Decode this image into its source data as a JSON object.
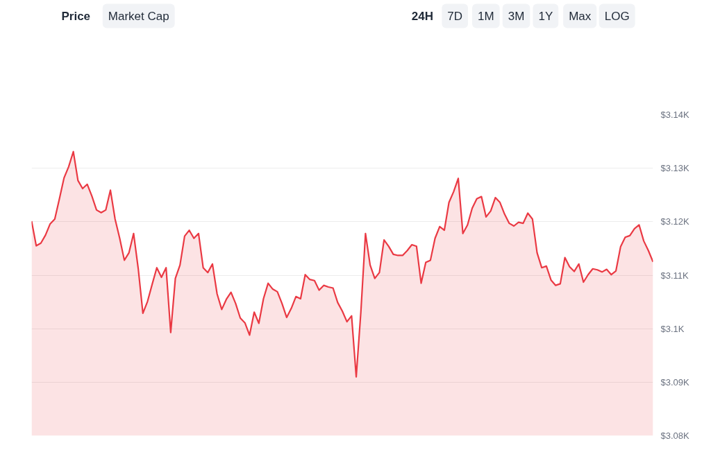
{
  "chart_data": {
    "type": "area",
    "categories": [
      null,
      null,
      null,
      null,
      null,
      null,
      null,
      null,
      null,
      null,
      null,
      null,
      null,
      null,
      null,
      null,
      null,
      null,
      null,
      null,
      null,
      null,
      null,
      null,
      null,
      null,
      null,
      null,
      null,
      null,
      null,
      null,
      null,
      null,
      null,
      null,
      null,
      null,
      null,
      null,
      null,
      null,
      null,
      null,
      null,
      null,
      null,
      null,
      null,
      null,
      null,
      null,
      null,
      null,
      null,
      null,
      null,
      null,
      null,
      null,
      null,
      null,
      null,
      null,
      null,
      null,
      null,
      null,
      null,
      null,
      null,
      null,
      null,
      null,
      null,
      null,
      null,
      null,
      null,
      null,
      null,
      null,
      null,
      null,
      null,
      null,
      null,
      null,
      null,
      null,
      null,
      null,
      null,
      null,
      null,
      null,
      null,
      null,
      null,
      null,
      null,
      null,
      null,
      null,
      null,
      null,
      null,
      null,
      null,
      null,
      null,
      null,
      null,
      null,
      null,
      null,
      null,
      null,
      null,
      null,
      null,
      null,
      null,
      null,
      null,
      null,
      null,
      null,
      null,
      null,
      null,
      null,
      null,
      null,
      null
    ],
    "series": [
      {
        "color": "#ea3943",
        "values": [
          3120.1,
          3115.5,
          3116.0,
          3117.5,
          3119.6,
          3120.5,
          3124.3,
          3128.2,
          3130.3,
          3133.1,
          3127.7,
          3126.2,
          3127.0,
          3124.8,
          3122.2,
          3121.7,
          3122.2,
          3125.9,
          3120.5,
          3116.9,
          3112.8,
          3114.2,
          3117.8,
          3111.2,
          3102.9,
          3105.1,
          3108.3,
          3111.4,
          3109.6,
          3111.4,
          3099.3,
          3109.4,
          3111.9,
          3117.3,
          3118.4,
          3116.9,
          3117.8,
          3111.4,
          3110.5,
          3112.1,
          3106.5,
          3103.6,
          3105.5,
          3106.8,
          3104.7,
          3102.0,
          3101.1,
          3098.8,
          3103.1,
          3101.0,
          3105.6,
          3108.5,
          3107.4,
          3106.9,
          3104.7,
          3102.1,
          3103.8,
          3106.0,
          3105.6,
          3110.1,
          3109.2,
          3109.0,
          3107.2,
          3108.1,
          3107.8,
          3107.6,
          3104.9,
          3103.3,
          3101.3,
          3102.4,
          3091.0,
          3103.1,
          3117.8,
          3111.9,
          3109.4,
          3110.5,
          3116.6,
          3115.4,
          3113.9,
          3113.7,
          3113.7,
          3114.6,
          3115.7,
          3115.4,
          3108.5,
          3112.4,
          3112.8,
          3116.9,
          3119.1,
          3118.4,
          3123.6,
          3125.6,
          3128.1,
          3117.8,
          3119.4,
          3122.5,
          3124.3,
          3124.7,
          3120.9,
          3122.0,
          3124.5,
          3123.6,
          3121.4,
          3119.7,
          3119.2,
          3119.9,
          3119.7,
          3121.6,
          3120.5,
          3114.2,
          3111.4,
          3111.7,
          3109.1,
          3108.1,
          3108.4,
          3113.3,
          3111.6,
          3110.7,
          3112.1,
          3108.7,
          3110.1,
          3111.2,
          3111.0,
          3110.6,
          3111.1,
          3110.1,
          3110.8,
          3115.3,
          3117.1,
          3117.4,
          3118.7,
          3119.4,
          3116.4,
          3114.6,
          3112.5
        ]
      }
    ],
    "ylim": [
      3080,
      3140
    ],
    "yticks": [
      {
        "value": 3080,
        "label": "$3.08K"
      },
      {
        "value": 3090,
        "label": "$3.09K"
      },
      {
        "value": 3100,
        "label": "$3.1K"
      },
      {
        "value": 3110,
        "label": "$3.11K"
      },
      {
        "value": 3120,
        "label": "$3.12K"
      },
      {
        "value": 3130,
        "label": "$3.13K"
      },
      {
        "value": 3140,
        "label": "$3.14K"
      }
    ],
    "grid": "y",
    "tick_labels": "y",
    "annotations": [
      "Price",
      "Market Cap",
      "24H",
      "7D",
      "1M",
      "3M",
      "1Y",
      "Max",
      "LOG"
    ]
  }
}
